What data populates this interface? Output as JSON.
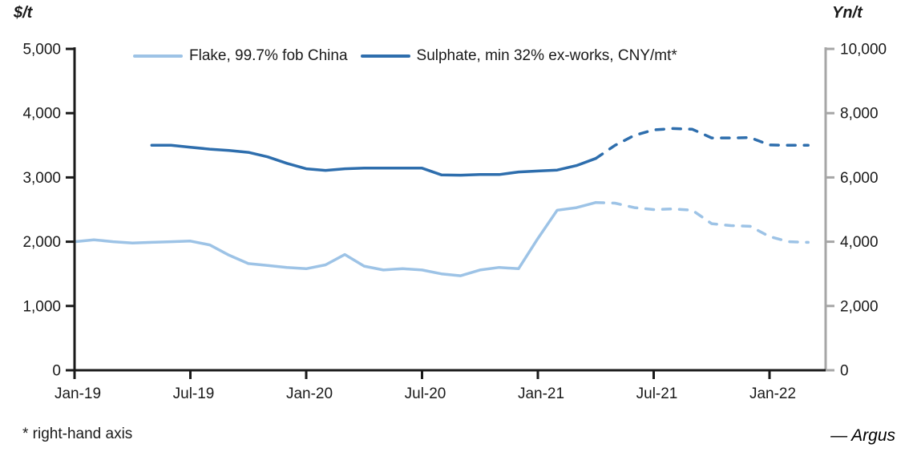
{
  "page": {
    "left_axis_title": "$/t",
    "right_axis_title": "Yn/t",
    "footnote": "* right-hand axis",
    "brand": "— Argus"
  },
  "colors": {
    "flake": "#9dc3e6",
    "sulphate": "#2e6ead",
    "left_axis": "#1a1a1a",
    "right_axis": "#a6a6a6",
    "text": "#1a1a1a"
  },
  "chart_data": {
    "type": "line",
    "title": "",
    "xlabel": "",
    "left_ylabel": "$/t",
    "right_ylabel": "Yn/t",
    "grid": false,
    "legend_position": "top",
    "left_ylim": [
      0,
      5000
    ],
    "right_ylim": [
      0,
      10000
    ],
    "x": [
      "Jan-19",
      "Feb-19",
      "Mar-19",
      "Apr-19",
      "May-19",
      "Jun-19",
      "Jul-19",
      "Aug-19",
      "Sep-19",
      "Oct-19",
      "Nov-19",
      "Dec-19",
      "Jan-20",
      "Feb-20",
      "Mar-20",
      "Apr-20",
      "May-20",
      "Jun-20",
      "Jul-20",
      "Aug-20",
      "Sep-20",
      "Oct-20",
      "Nov-20",
      "Dec-20",
      "Jan-21",
      "Feb-21",
      "Mar-21",
      "Apr-21",
      "May-21",
      "Jun-21",
      "Jul-21",
      "Aug-21",
      "Sep-21",
      "Oct-21",
      "Nov-21",
      "Dec-21",
      "Jan-22",
      "Feb-22",
      "Mar-22"
    ],
    "x_tick_labels": [
      "Jan-19",
      "Jul-19",
      "Jan-20",
      "Jul-20",
      "Jan-21",
      "Jul-21",
      "Jan-22"
    ],
    "x_tick_indices": [
      0,
      6,
      12,
      18,
      24,
      30,
      36
    ],
    "left_tick_values": [
      5000,
      4000,
      3000,
      2000,
      1000,
      0
    ],
    "left_tick_labels": [
      "5,000",
      "4,000",
      "3,000",
      "2,000",
      "1,000",
      "0"
    ],
    "right_tick_values": [
      10000,
      8000,
      6000,
      4000,
      2000,
      0
    ],
    "right_tick_labels": [
      "10,000",
      "8,000",
      "6,000",
      "4,000",
      "2,000",
      "0"
    ],
    "dash_start_index": 28,
    "series": [
      {
        "name": "Flake, 99.7% fob China",
        "axis": "left",
        "unit": "$/t",
        "color": "#9dc3e6",
        "start_index": 0,
        "values": [
          2000,
          2030,
          2000,
          1980,
          1990,
          2000,
          2010,
          1950,
          1790,
          1660,
          1630,
          1600,
          1580,
          1640,
          1800,
          1620,
          1560,
          1580,
          1560,
          1500,
          1470,
          1560,
          1600,
          1580,
          2050,
          2490,
          2530,
          2610,
          2600,
          2530,
          2500,
          2510,
          2490,
          2280,
          2250,
          2240,
          2080,
          2000,
          1990
        ]
      },
      {
        "name": "Sulphate, min 32% ex-works, CNY/mt*",
        "axis": "right",
        "unit": "Yn/t",
        "color": "#2e6ead",
        "start_index": 4,
        "values": [
          7000,
          7000,
          6940,
          6880,
          6840,
          6780,
          6640,
          6440,
          6270,
          6220,
          6270,
          6290,
          6290,
          6290,
          6290,
          6080,
          6070,
          6090,
          6090,
          6170,
          6200,
          6230,
          6370,
          6590,
          7000,
          7310,
          7480,
          7520,
          7500,
          7230,
          7230,
          7240,
          7010,
          7000,
          7000
        ]
      }
    ]
  }
}
